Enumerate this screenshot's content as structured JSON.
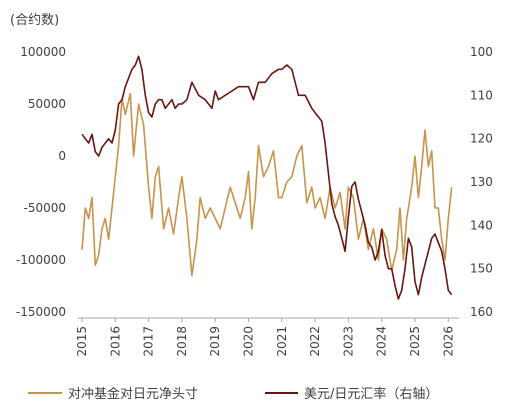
{
  "chart_data": {
    "type": "line",
    "unit_label": "(合约数)",
    "x_ticks": [
      "2015",
      "2016",
      "2017",
      "2018",
      "2019",
      "2020",
      "2021",
      "2022",
      "2023",
      "2024",
      "2025",
      "2026"
    ],
    "x_range": [
      2015.0,
      2026.2
    ],
    "left_axis": {
      "ticks": [
        "100000",
        "50000",
        "0",
        "-50000",
        "-100000",
        "-150000"
      ],
      "tick_values": [
        100000,
        50000,
        0,
        -50000,
        -100000,
        -150000
      ],
      "range": [
        -150000,
        100000
      ]
    },
    "right_axis": {
      "ticks": [
        "100",
        "110",
        "120",
        "130",
        "140",
        "150",
        "160"
      ],
      "tick_values": [
        100,
        110,
        120,
        130,
        140,
        150,
        160
      ],
      "range": [
        100,
        160
      ],
      "inverted": true
    },
    "series": [
      {
        "name": "对冲基金对日元净头寸",
        "axis": "left",
        "color": "#C8934A",
        "x": [
          2015.0,
          2015.1,
          2015.2,
          2015.3,
          2015.4,
          2015.5,
          2015.6,
          2015.7,
          2015.8,
          2015.9,
          2016.0,
          2016.1,
          2016.2,
          2016.3,
          2016.45,
          2016.55,
          2016.7,
          2016.85,
          2017.0,
          2017.1,
          2017.2,
          2017.3,
          2017.45,
          2017.6,
          2017.75,
          2017.9,
          2018.0,
          2018.15,
          2018.3,
          2018.45,
          2018.55,
          2018.7,
          2018.85,
          2019.0,
          2019.15,
          2019.3,
          2019.45,
          2019.6,
          2019.75,
          2019.9,
          2020.0,
          2020.1,
          2020.2,
          2020.3,
          2020.45,
          2020.6,
          2020.75,
          2020.9,
          2021.0,
          2021.15,
          2021.3,
          2021.45,
          2021.6,
          2021.75,
          2021.9,
          2022.0,
          2022.15,
          2022.3,
          2022.45,
          2022.6,
          2022.75,
          2022.9,
          2023.0,
          2023.15,
          2023.3,
          2023.45,
          2023.6,
          2023.75,
          2023.9,
          2024.0,
          2024.15,
          2024.3,
          2024.45,
          2024.55,
          2024.65,
          2024.75,
          2024.9,
          2025.0,
          2025.1,
          2025.2,
          2025.3,
          2025.4,
          2025.5,
          2025.6,
          2025.7,
          2025.8,
          2025.9,
          2026.0,
          2026.1
        ],
        "values": [
          -90000,
          -50000,
          -60000,
          -40000,
          -105000,
          -95000,
          -70000,
          -60000,
          -80000,
          -50000,
          -20000,
          10000,
          55000,
          40000,
          60000,
          0,
          50000,
          30000,
          -30000,
          -60000,
          -20000,
          -10000,
          -70000,
          -50000,
          -75000,
          -40000,
          -20000,
          -60000,
          -115000,
          -80000,
          -40000,
          -60000,
          -50000,
          -60000,
          -70000,
          -50000,
          -30000,
          -45000,
          -60000,
          -40000,
          -15000,
          -70000,
          -40000,
          10000,
          -20000,
          -10000,
          5000,
          -40000,
          -40000,
          -25000,
          -20000,
          0,
          10000,
          -45000,
          -30000,
          -50000,
          -40000,
          -60000,
          -30000,
          -50000,
          -35000,
          -70000,
          -30000,
          -40000,
          -80000,
          -60000,
          -90000,
          -70000,
          -100000,
          -70000,
          -80000,
          -110000,
          -90000,
          -50000,
          -100000,
          -60000,
          -30000,
          0,
          -40000,
          -10000,
          25000,
          -10000,
          5000,
          -50000,
          -50000,
          -80000,
          -100000,
          -60000,
          -30000
        ]
      },
      {
        "name": "美元/日元汇率（右轴）",
        "axis": "right",
        "color": "#6B1512",
        "x": [
          2015.0,
          2015.1,
          2015.2,
          2015.3,
          2015.4,
          2015.5,
          2015.6,
          2015.7,
          2015.8,
          2015.9,
          2016.0,
          2016.1,
          2016.2,
          2016.3,
          2016.4,
          2016.5,
          2016.6,
          2016.7,
          2016.8,
          2016.9,
          2017.0,
          2017.1,
          2017.2,
          2017.3,
          2017.4,
          2017.5,
          2017.6,
          2017.7,
          2017.8,
          2017.9,
          2018.0,
          2018.15,
          2018.3,
          2018.5,
          2018.7,
          2018.9,
          2019.0,
          2019.1,
          2019.3,
          2019.5,
          2019.7,
          2019.9,
          2020.0,
          2020.15,
          2020.3,
          2020.5,
          2020.7,
          2020.9,
          2021.0,
          2021.15,
          2021.3,
          2021.5,
          2021.7,
          2021.9,
          2022.0,
          2022.1,
          2022.2,
          2022.3,
          2022.4,
          2022.5,
          2022.6,
          2022.7,
          2022.8,
          2022.9,
          2023.0,
          2023.1,
          2023.2,
          2023.3,
          2023.4,
          2023.5,
          2023.6,
          2023.7,
          2023.8,
          2023.9,
          2024.0,
          2024.1,
          2024.2,
          2024.3,
          2024.4,
          2024.5,
          2024.6,
          2024.7,
          2024.8,
          2024.9,
          2025.0,
          2025.1,
          2025.2,
          2025.3,
          2025.4,
          2025.5,
          2025.6,
          2025.7,
          2025.8,
          2025.9,
          2026.0,
          2026.1
        ],
        "values": [
          119,
          120,
          121,
          119,
          123,
          124,
          122,
          121,
          120,
          121,
          118,
          112,
          111,
          108,
          106,
          104,
          103,
          101,
          104,
          110,
          114,
          115,
          112,
          111,
          111,
          113,
          112,
          111,
          113,
          112,
          112,
          111,
          107,
          110,
          111,
          113,
          109,
          111,
          110,
          109,
          108,
          108,
          108,
          111,
          107,
          107,
          105,
          104,
          104,
          103,
          104,
          110,
          110,
          113,
          114,
          115,
          116,
          121,
          128,
          135,
          138,
          140,
          143,
          146,
          138,
          131,
          130,
          134,
          137,
          140,
          144,
          145,
          148,
          146,
          141,
          147,
          150,
          150,
          154,
          157,
          155,
          150,
          143,
          145,
          153,
          156,
          152,
          149,
          146,
          143,
          142,
          144,
          146,
          150,
          155,
          156
        ]
      }
    ]
  }
}
